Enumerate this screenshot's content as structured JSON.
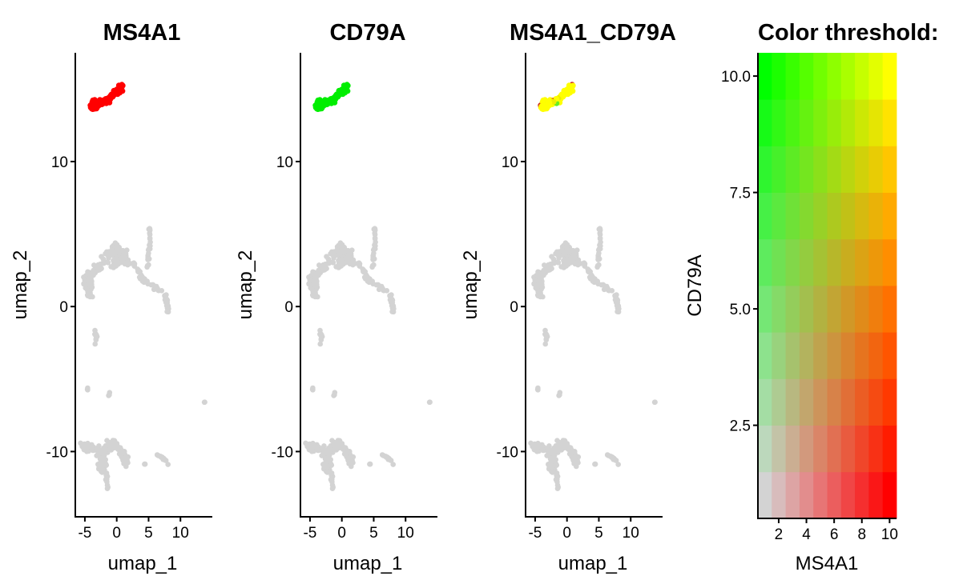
{
  "figure": {
    "gene1": "MS4A1",
    "gene2": "CD79A",
    "colors": {
      "background_cells": "#d3d3d3",
      "low": "#d3d3d3",
      "gene1": "#ff0000",
      "gene2": "#00ff00",
      "both": "#ffff00"
    }
  },
  "chart_data": [
    {
      "type": "scatter",
      "title": "MS4A1",
      "xlabel": "umap_1",
      "ylabel": "umap_2",
      "xlim": [
        -6.5,
        15
      ],
      "ylim": [
        -14.5,
        17.5
      ],
      "xticks": [
        -5,
        0,
        5,
        10
      ],
      "xtick_labels": [
        "-5",
        "0",
        "5",
        "10"
      ],
      "yticks": [
        -10,
        0,
        10
      ],
      "ytick_labels": [
        "-10",
        "0",
        "10"
      ],
      "expressing_cluster_color": "#ff0000"
    },
    {
      "type": "scatter",
      "title": "CD79A",
      "xlabel": "umap_1",
      "ylabel": "umap_2",
      "xlim": [
        -6.5,
        15
      ],
      "ylim": [
        -14.5,
        17.5
      ],
      "xticks": [
        -5,
        0,
        5,
        10
      ],
      "xtick_labels": [
        "-5",
        "0",
        "5",
        "10"
      ],
      "yticks": [
        -10,
        0,
        10
      ],
      "ytick_labels": [
        "-10",
        "0",
        "10"
      ],
      "expressing_cluster_color": "#00ee00"
    },
    {
      "type": "scatter",
      "title": "MS4A1_CD79A",
      "xlabel": "umap_1",
      "ylabel": "umap_2",
      "xlim": [
        -6.5,
        15
      ],
      "ylim": [
        -14.5,
        17.5
      ],
      "xticks": [
        -5,
        0,
        5,
        10
      ],
      "xtick_labels": [
        "-5",
        "0",
        "5",
        "10"
      ],
      "yticks": [
        -10,
        0,
        10
      ],
      "ytick_labels": [
        "-10",
        "0",
        "10"
      ],
      "expressing_cluster_color": "#ffff00"
    },
    {
      "type": "heatmap",
      "title": "Color threshold:",
      "xlabel": "MS4A1",
      "ylabel": "CD79A",
      "xlim": [
        0.5,
        10.5
      ],
      "ylim": [
        0.5,
        10.5
      ],
      "xticks": [
        2,
        4,
        6,
        8,
        10
      ],
      "xtick_labels": [
        "2",
        "4",
        "6",
        "8",
        "10"
      ],
      "yticks": [
        2.5,
        5.0,
        7.5,
        10.0
      ],
      "ytick_labels": [
        "2.5",
        "5.0",
        "7.5",
        "10.0"
      ],
      "levels": 10,
      "corner_colors": {
        "low_low": "#d3d3d3",
        "high_x": "#ff0000",
        "high_y": "#00ff00",
        "high_both": "#ffff00"
      }
    }
  ]
}
